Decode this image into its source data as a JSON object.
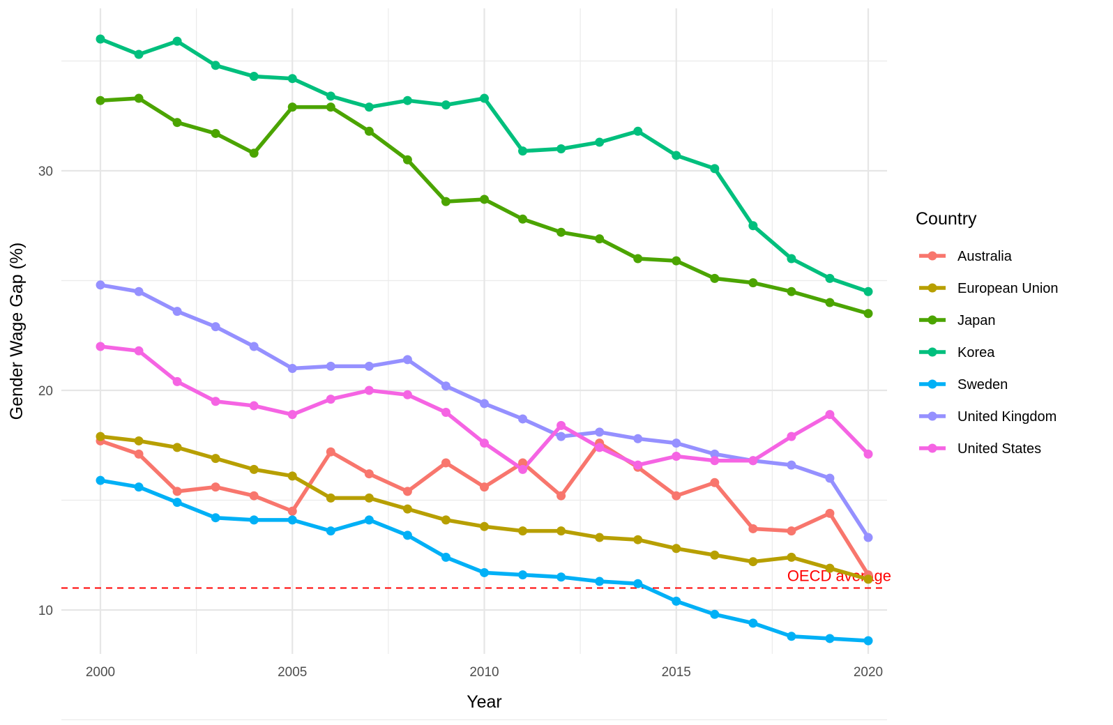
{
  "chart_data": {
    "type": "line",
    "title": "",
    "xlabel": "Year",
    "ylabel": "Gender Wage Gap (%)",
    "xlim": [
      1998.6,
      2020.0
    ],
    "ylim": [
      7.6,
      35.6
    ],
    "x_ticks": [
      "2000",
      "2005",
      "2010",
      "2015",
      "2020"
    ],
    "y_ticks": [
      "10",
      "20",
      "30"
    ],
    "grid": true,
    "legend_title": "Country",
    "legend_position": "right",
    "x": [
      2000,
      2001,
      2002,
      2003,
      2004,
      2005,
      2006,
      2007,
      2008,
      2009,
      2010,
      2011,
      2012,
      2013,
      2014,
      2015,
      2016,
      2017,
      2018,
      2019,
      2020
    ],
    "series": [
      {
        "name": "Australia",
        "color": "#F8766D",
        "values": [
          17.7,
          17.1,
          15.4,
          15.6,
          15.2,
          14.5,
          17.2,
          16.2,
          15.4,
          16.7,
          15.6,
          16.7,
          15.2,
          17.6,
          16.5,
          15.2,
          15.8,
          13.7,
          13.6,
          14.4,
          11.6
        ]
      },
      {
        "name": "European Union",
        "color": "#B79F00",
        "values": [
          17.9,
          17.7,
          17.4,
          16.9,
          16.4,
          16.1,
          15.1,
          15.1,
          14.6,
          14.1,
          13.8,
          13.6,
          13.6,
          13.3,
          13.2,
          12.8,
          12.5,
          12.2,
          12.4,
          11.9,
          11.4
        ]
      },
      {
        "name": "Japan",
        "color": "#4BA400",
        "values": [
          33.2,
          33.3,
          32.2,
          31.7,
          30.8,
          32.9,
          32.9,
          31.8,
          30.5,
          28.6,
          28.7,
          27.8,
          27.2,
          26.9,
          26.0,
          25.9,
          25.1,
          24.9,
          24.5,
          24.0,
          23.5
        ]
      },
      {
        "name": "Korea",
        "color": "#00BF7D",
        "values": [
          36.0,
          35.3,
          35.9,
          34.8,
          34.3,
          34.2,
          33.4,
          32.9,
          33.2,
          33.0,
          33.3,
          30.9,
          31.0,
          31.3,
          31.8,
          30.7,
          30.1,
          27.5,
          26.0,
          25.1,
          24.5
        ]
      },
      {
        "name": "Sweden",
        "color": "#00B0F6",
        "values": [
          15.9,
          15.6,
          14.9,
          14.2,
          14.1,
          14.1,
          13.6,
          14.1,
          13.4,
          12.4,
          11.7,
          11.6,
          11.5,
          11.3,
          11.2,
          10.4,
          9.8,
          9.4,
          8.8,
          8.7,
          8.6
        ]
      },
      {
        "name": "United Kingdom",
        "color": "#9590FF",
        "values": [
          24.8,
          24.5,
          23.6,
          22.9,
          22.0,
          21.0,
          21.1,
          21.1,
          21.4,
          20.2,
          19.4,
          18.7,
          17.9,
          18.1,
          17.8,
          17.6,
          17.1,
          16.8,
          16.6,
          16.0,
          13.3
        ]
      },
      {
        "name": "United States",
        "color": "#F564E3",
        "values": [
          22.0,
          21.8,
          20.4,
          19.5,
          19.3,
          18.9,
          19.6,
          20.0,
          19.8,
          19.0,
          17.6,
          16.4,
          18.4,
          17.4,
          16.6,
          17.0,
          16.8,
          16.8,
          17.9,
          18.9,
          17.1
        ]
      }
    ],
    "reference_line": {
      "label": "OECD average",
      "value": 11.0,
      "color": "#FF0000",
      "style": "dashed"
    }
  }
}
